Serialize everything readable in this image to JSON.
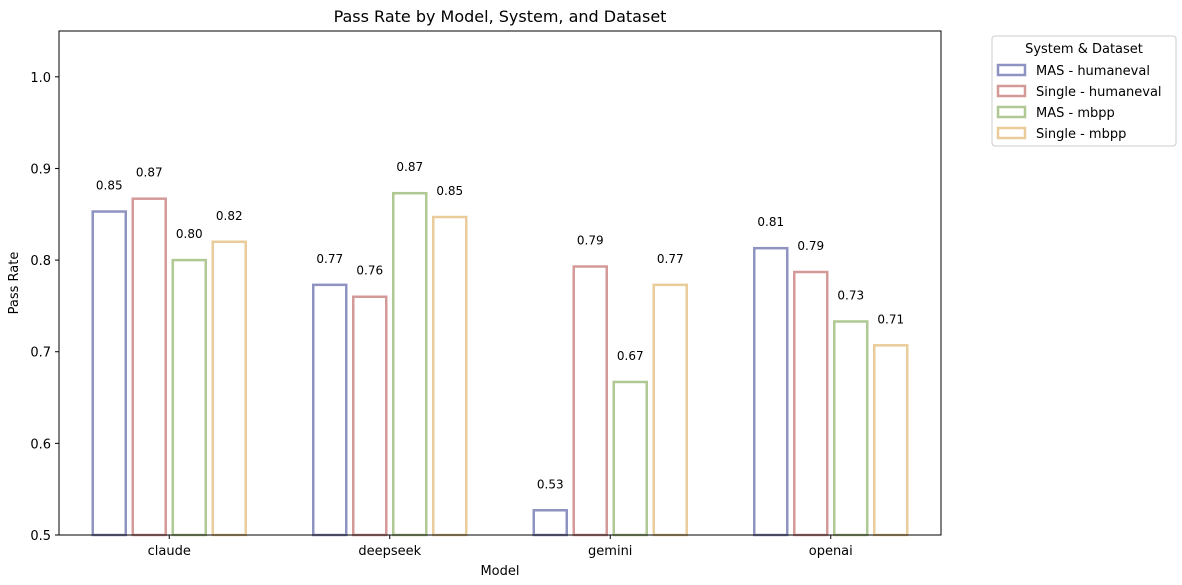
{
  "chart_data": {
    "type": "bar",
    "title": "Pass Rate by Model, System, and Dataset",
    "xlabel": "Model",
    "ylabel": "Pass Rate",
    "categories": [
      "claude",
      "deepseek",
      "gemini",
      "openai"
    ],
    "ylim": [
      0.5,
      1.05
    ],
    "yticks": [
      0.5,
      0.6,
      0.7,
      0.8,
      0.9,
      1.0
    ],
    "ytick_labels": [
      "0.5",
      "0.6",
      "0.7",
      "0.8",
      "0.9",
      "1.0"
    ],
    "legend_title": "System & Dataset",
    "legend_position": "outside top-right",
    "grid": false,
    "bar_style": "outlined",
    "series": [
      {
        "name": "MAS - humaneval",
        "color": "#8f93c1",
        "values": [
          0.853,
          0.773,
          0.527,
          0.813
        ],
        "labels": [
          "0.85",
          "0.77",
          "0.53",
          "0.81"
        ]
      },
      {
        "name": "Single - humaneval",
        "color": "#d49a98",
        "values": [
          0.867,
          0.76,
          0.793,
          0.787
        ],
        "labels": [
          "0.87",
          "0.76",
          "0.79",
          "0.79"
        ]
      },
      {
        "name": "MAS - mbpp",
        "color": "#afc894",
        "values": [
          0.8,
          0.873,
          0.667,
          0.733
        ],
        "labels": [
          "0.80",
          "0.87",
          "0.67",
          "0.73"
        ]
      },
      {
        "name": "Single - mbpp",
        "color": "#e9cc9a",
        "values": [
          0.82,
          0.847,
          0.773,
          0.707
        ],
        "labels": [
          "0.82",
          "0.85",
          "0.77",
          "0.71"
        ]
      }
    ]
  }
}
